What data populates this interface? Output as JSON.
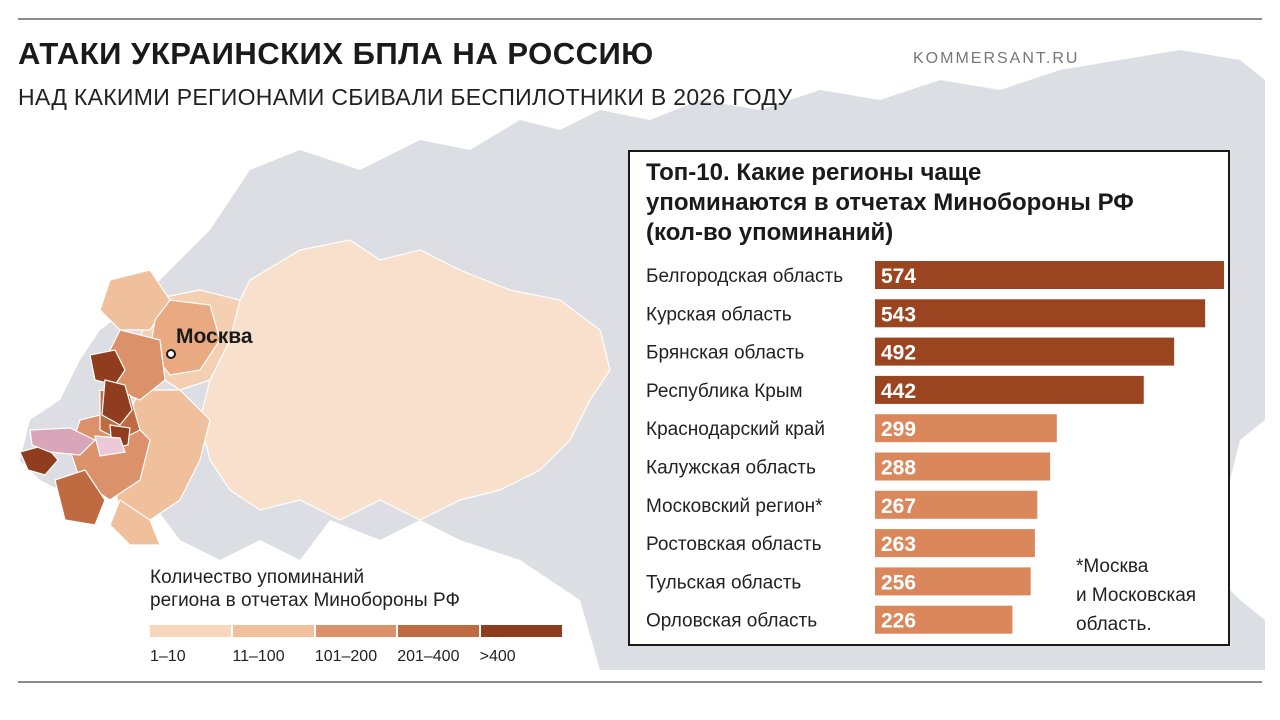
{
  "title": "АТАКИ УКРАИНСКИХ БПЛА НА РОССИЮ",
  "subtitle": "НАД КАКИМИ РЕГИОНАМИ СБИВАЛИ БЕСПИЛОТНИКИ В 2026 ГОДУ",
  "source": "KOMMERSANT.RU",
  "map": {
    "city_label": "Москва"
  },
  "legend": {
    "title_line1": "Количество упоминаний",
    "title_line2": "региона в отчетах Минобороны РФ",
    "bins": [
      {
        "label": "1–10",
        "color": "#f7d7bd"
      },
      {
        "label": "11–100",
        "color": "#f0c09c"
      },
      {
        "label": "101–200",
        "color": "#db926a"
      },
      {
        "label": "201–400",
        "color": "#c06a42"
      },
      {
        "label": ">400",
        "color": "#8f3d1e"
      }
    ]
  },
  "panel": {
    "title_line1": "Топ-10. Какие регионы чаще",
    "title_line2": "упоминаются в отчетах Минобороны РФ",
    "title_line3": "(кол-во упоминаний)"
  },
  "footnote": {
    "line1": "*Москва",
    "line2": "и Московская",
    "line3": "область."
  },
  "colors": {
    "bar_high": "#9b4420",
    "bar_mid": "#d9875b",
    "map_land_other": "#dcdee3",
    "map_russia": "#f8e0cd"
  },
  "chart_data": {
    "type": "bar",
    "orientation": "horizontal",
    "title": "Топ-10. Какие регионы чаще упоминаются в отчетах Минобороны РФ (кол-во упоминаний)",
    "categories": [
      "Белгородская область",
      "Курская область",
      "Брянская область",
      "Республика Крым",
      "Краснодарский край",
      "Калужская область",
      "Московский регион*",
      "Ростовская область",
      "Тульская область",
      "Орловская область"
    ],
    "values": [
      574,
      543,
      492,
      442,
      299,
      288,
      267,
      263,
      256,
      226
    ],
    "xlim": [
      0,
      574
    ],
    "data_labels": true,
    "grid": false
  }
}
